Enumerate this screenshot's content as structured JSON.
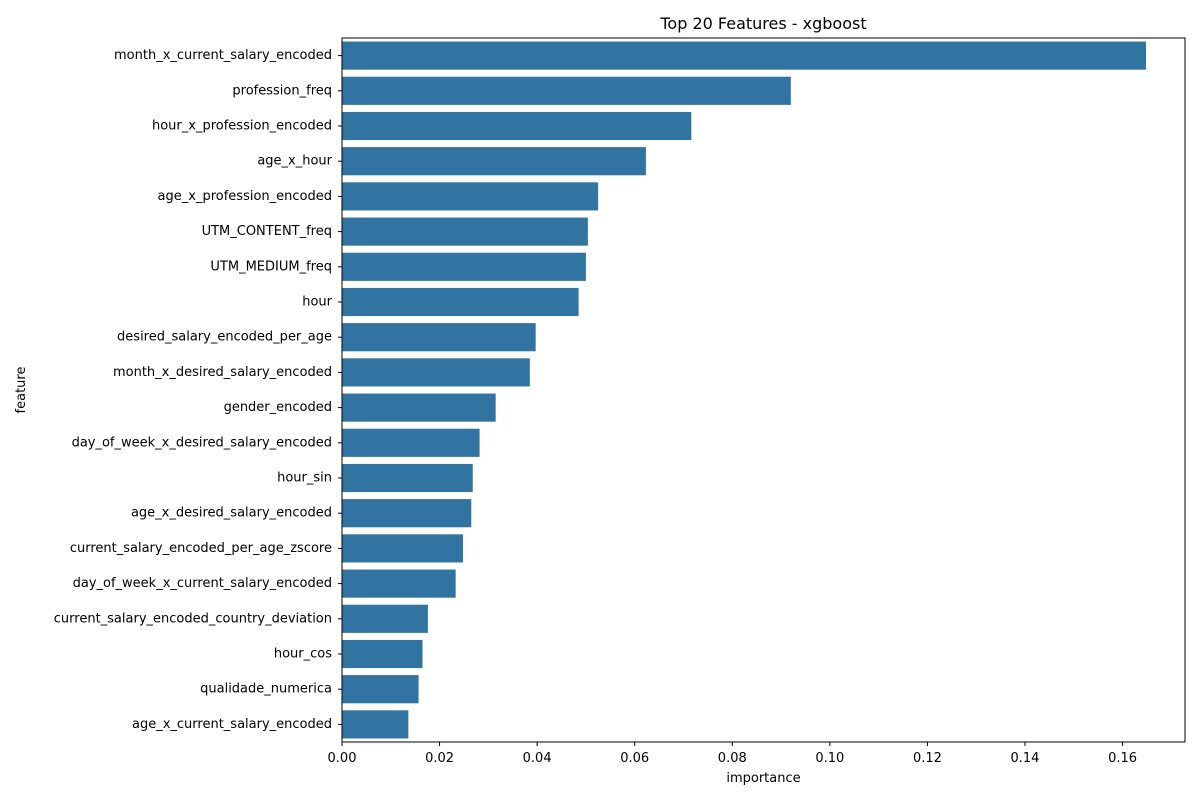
{
  "chart_data": {
    "type": "bar",
    "orientation": "horizontal",
    "title": "Top 20 Features - xgboost",
    "xlabel": "importance",
    "ylabel": "feature",
    "xlim": [
      0,
      0.1728
    ],
    "xticks": [
      "0.00",
      "0.02",
      "0.04",
      "0.06",
      "0.08",
      "0.10",
      "0.12",
      "0.14",
      "0.16"
    ],
    "xtick_values": [
      0,
      0.02,
      0.04,
      0.06,
      0.08,
      0.1,
      0.12,
      0.14,
      0.16
    ],
    "grid": false,
    "legend": "none",
    "bar_color": "#3274a1",
    "categories": [
      "month_x_current_salary_encoded",
      "profession_freq",
      "hour_x_profession_encoded",
      "age_x_hour",
      "age_x_profession_encoded",
      "UTM_CONTENT_freq",
      "UTM_MEDIUM_freq",
      "hour",
      "desired_salary_encoded_per_age",
      "month_x_desired_salary_encoded",
      "gender_encoded",
      "day_of_week_x_desired_salary_encoded",
      "hour_sin",
      "age_x_desired_salary_encoded",
      "current_salary_encoded_per_age_zscore",
      "day_of_week_x_current_salary_encoded",
      "current_salary_encoded_country_deviation",
      "hour_cos",
      "qualidade_numerica",
      "age_x_current_salary_encoded"
    ],
    "values": [
      0.1648,
      0.092,
      0.0716,
      0.0623,
      0.0525,
      0.0504,
      0.05,
      0.0485,
      0.0397,
      0.0385,
      0.0315,
      0.0282,
      0.0268,
      0.0265,
      0.0248,
      0.0233,
      0.0176,
      0.0165,
      0.0157,
      0.0136
    ]
  }
}
